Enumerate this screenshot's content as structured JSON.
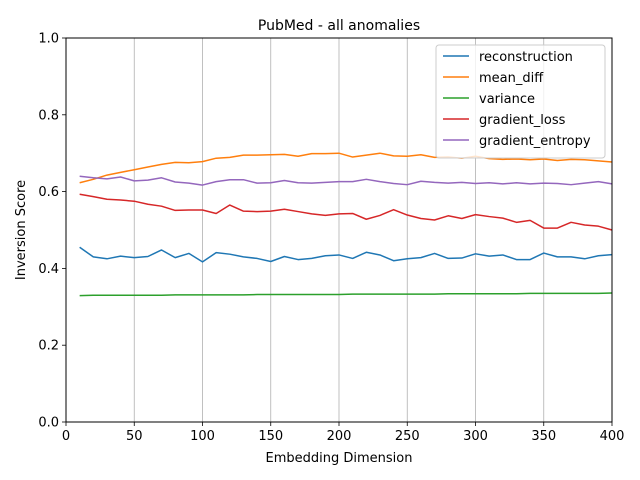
{
  "chart_data": {
    "type": "line",
    "title": "PubMed - all anomalies",
    "xlabel": "Embedding Dimension",
    "ylabel": "Inversion Score",
    "xlim": [
      0,
      400
    ],
    "ylim": [
      0,
      1.0
    ],
    "xticks": [
      0,
      50,
      100,
      150,
      200,
      250,
      300,
      350,
      400
    ],
    "yticks": [
      0.0,
      0.2,
      0.4,
      0.6,
      0.8,
      1.0
    ],
    "xtick_labels": [
      "0",
      "50",
      "100",
      "150",
      "200",
      "250",
      "300",
      "350",
      "400"
    ],
    "ytick_labels": [
      "0.0",
      "0.2",
      "0.4",
      "0.6",
      "0.8",
      "1.0"
    ],
    "grid": "x-only",
    "legend_position": "top-right",
    "x": [
      10,
      20,
      30,
      40,
      50,
      60,
      70,
      80,
      90,
      100,
      110,
      120,
      130,
      140,
      150,
      160,
      170,
      180,
      190,
      200,
      210,
      220,
      230,
      240,
      250,
      260,
      270,
      280,
      290,
      300,
      310,
      320,
      330,
      340,
      350,
      360,
      370,
      380,
      390,
      400
    ],
    "series": [
      {
        "name": "reconstruction",
        "color": "#1f77b4",
        "values": [
          0.455,
          0.43,
          0.425,
          0.432,
          0.428,
          0.431,
          0.448,
          0.428,
          0.439,
          0.417,
          0.441,
          0.437,
          0.43,
          0.426,
          0.418,
          0.431,
          0.423,
          0.426,
          0.433,
          0.435,
          0.426,
          0.442,
          0.435,
          0.42,
          0.425,
          0.428,
          0.439,
          0.426,
          0.427,
          0.438,
          0.432,
          0.435,
          0.423,
          0.423,
          0.44,
          0.43,
          0.43,
          0.425,
          0.433,
          0.436
        ]
      },
      {
        "name": "mean_diff",
        "color": "#ff7f0e",
        "values": [
          0.623,
          0.632,
          0.643,
          0.65,
          0.657,
          0.664,
          0.671,
          0.676,
          0.675,
          0.678,
          0.687,
          0.689,
          0.695,
          0.695,
          0.696,
          0.697,
          0.692,
          0.699,
          0.699,
          0.7,
          0.69,
          0.695,
          0.7,
          0.693,
          0.692,
          0.696,
          0.689,
          0.69,
          0.687,
          0.692,
          0.686,
          0.684,
          0.685,
          0.683,
          0.685,
          0.681,
          0.684,
          0.683,
          0.68,
          0.677
        ]
      },
      {
        "name": "variance",
        "color": "#2ca02c",
        "values": [
          0.329,
          0.33,
          0.33,
          0.33,
          0.33,
          0.33,
          0.33,
          0.331,
          0.331,
          0.331,
          0.331,
          0.331,
          0.331,
          0.332,
          0.332,
          0.332,
          0.332,
          0.332,
          0.332,
          0.332,
          0.333,
          0.333,
          0.333,
          0.333,
          0.333,
          0.333,
          0.333,
          0.334,
          0.334,
          0.334,
          0.334,
          0.334,
          0.334,
          0.335,
          0.335,
          0.335,
          0.335,
          0.335,
          0.335,
          0.336
        ]
      },
      {
        "name": "gradient_loss",
        "color": "#d62728",
        "values": [
          0.593,
          0.587,
          0.58,
          0.578,
          0.575,
          0.567,
          0.562,
          0.551,
          0.552,
          0.552,
          0.543,
          0.565,
          0.549,
          0.548,
          0.549,
          0.554,
          0.548,
          0.542,
          0.538,
          0.542,
          0.543,
          0.528,
          0.538,
          0.553,
          0.539,
          0.53,
          0.526,
          0.537,
          0.53,
          0.54,
          0.535,
          0.531,
          0.52,
          0.525,
          0.505,
          0.505,
          0.52,
          0.513,
          0.51,
          0.5
        ]
      },
      {
        "name": "gradient_entropy",
        "color": "#9467bd",
        "values": [
          0.64,
          0.636,
          0.633,
          0.638,
          0.628,
          0.63,
          0.636,
          0.625,
          0.622,
          0.617,
          0.626,
          0.631,
          0.631,
          0.622,
          0.623,
          0.629,
          0.623,
          0.622,
          0.624,
          0.626,
          0.626,
          0.632,
          0.626,
          0.621,
          0.618,
          0.627,
          0.624,
          0.622,
          0.624,
          0.621,
          0.623,
          0.62,
          0.623,
          0.62,
          0.622,
          0.621,
          0.618,
          0.622,
          0.626,
          0.62
        ]
      }
    ]
  }
}
